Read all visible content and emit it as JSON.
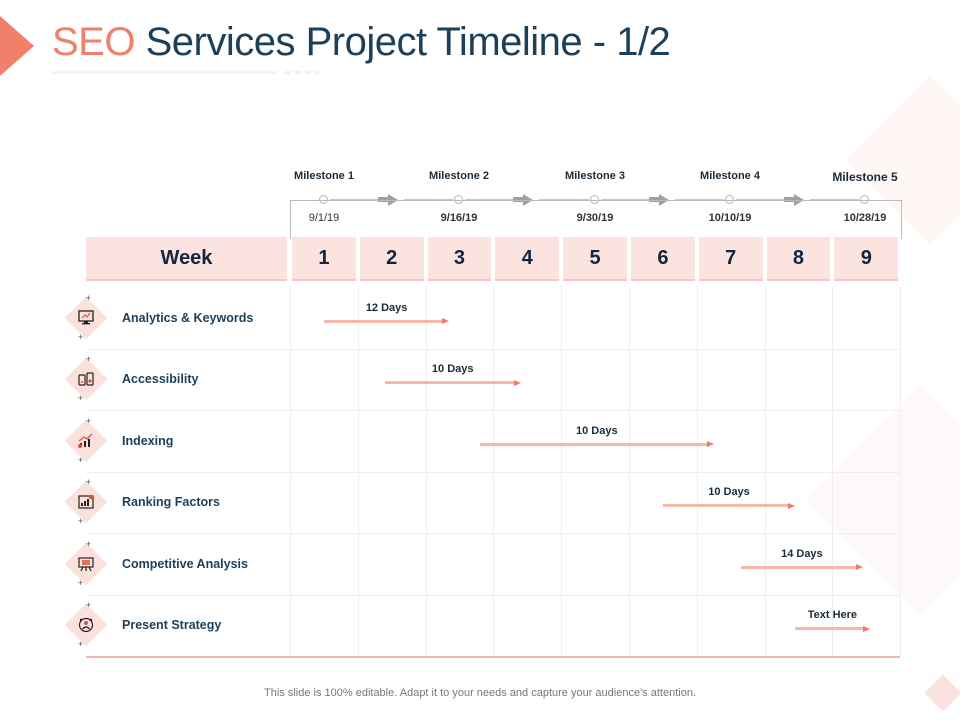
{
  "title": {
    "accent": "SEO",
    "rest": "Services Project Timeline - 1/2"
  },
  "colors": {
    "accent": "#f0806a",
    "title": "#1c3f5a",
    "header_fill": "#fbe3df",
    "bar": "#f5b7a9"
  },
  "milestones": [
    {
      "label": "Milestone 1",
      "date": "9/1/19"
    },
    {
      "label": "Milestone 2",
      "date": "9/16/19"
    },
    {
      "label": "Milestone 3",
      "date": "9/30/19"
    },
    {
      "label": "Milestone 4",
      "date": "10/10/19"
    },
    {
      "label": "Milestone 5",
      "date": "10/28/19"
    }
  ],
  "header": {
    "week_label": "Week",
    "weeks": [
      "1",
      "2",
      "3",
      "4",
      "5",
      "6",
      "7",
      "8",
      "9"
    ]
  },
  "tasks": [
    {
      "label": "Analytics & Keywords",
      "icon": "monitor-chart-icon",
      "bar_label": "12 Days",
      "start_week": 1.0,
      "end_week": 2.85
    },
    {
      "label": "Accessibility",
      "icon": "devices-icon",
      "bar_label": "10 Days",
      "start_week": 1.9,
      "end_week": 3.9
    },
    {
      "label": "Indexing",
      "icon": "growth-chart-icon",
      "bar_label": "10 Days",
      "start_week": 3.3,
      "end_week": 6.75
    },
    {
      "label": "Ranking Factors",
      "icon": "ranking-board-icon",
      "bar_label": "10 Days",
      "start_week": 6.0,
      "end_week": 7.95
    },
    {
      "label": "Competitive Analysis",
      "icon": "presentation-board-icon",
      "bar_label": "14 Days",
      "start_week": 7.15,
      "end_week": 8.95
    },
    {
      "label": "Present Strategy",
      "icon": "team-strategy-icon",
      "bar_label": "Text Here",
      "start_week": 7.95,
      "end_week": 9.05
    }
  ],
  "footer": "This slide is 100% editable. Adapt it to your needs and capture your audience's attention."
}
